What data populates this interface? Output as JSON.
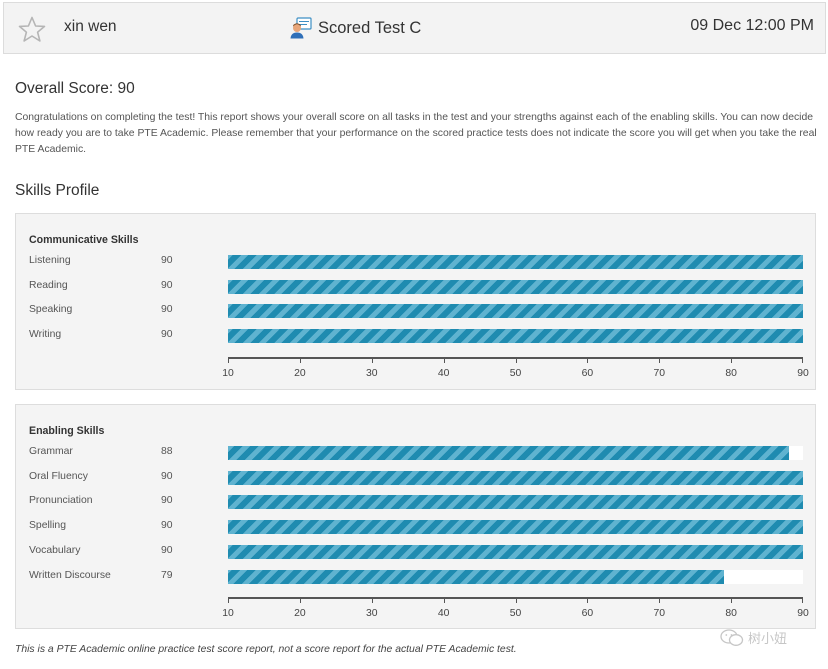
{
  "header": {
    "user_name": "xin wen",
    "test_name": "Scored Test C",
    "date_time": "09 Dec 12:00 PM"
  },
  "overall": {
    "heading": "Overall Score: 90",
    "score": 90
  },
  "intro_text": "Congratulations on completing the test! This report shows your overall score on all tasks in the test and your strengths against each of the enabling skills. You can now decide how ready you are to take PTE Academic. Please remember that your performance on the scored practice tests does not indicate the score you will get when you take the real PTE Academic.",
  "skills_profile_heading": "Skills Profile",
  "chart_data": [
    {
      "type": "bar",
      "title": "Communicative Skills",
      "categories": [
        "Listening",
        "Reading",
        "Speaking",
        "Writing"
      ],
      "values": [
        90,
        90,
        90,
        90
      ],
      "xlim": [
        10,
        90
      ],
      "ticks": [
        "10",
        "20",
        "30",
        "40",
        "50",
        "60",
        "70",
        "80",
        "90"
      ],
      "color": "#1f8bb0"
    },
    {
      "type": "bar",
      "title": "Enabling Skills",
      "categories": [
        "Grammar",
        "Oral Fluency",
        "Pronunciation",
        "Spelling",
        "Vocabulary",
        "Written Discourse"
      ],
      "values": [
        88,
        90,
        90,
        90,
        90,
        79
      ],
      "xlim": [
        10,
        90
      ],
      "ticks": [
        "10",
        "20",
        "30",
        "40",
        "50",
        "60",
        "70",
        "80",
        "90"
      ],
      "color": "#1f8bb0"
    }
  ],
  "footer_text": "This is a PTE Academic online practice test score report, not a score report for the actual PTE Academic test.",
  "watermark_text": "树小妞",
  "icons": {
    "favorite": "star-icon",
    "test": "test-taker-icon",
    "watermark": "wechat-icon"
  }
}
